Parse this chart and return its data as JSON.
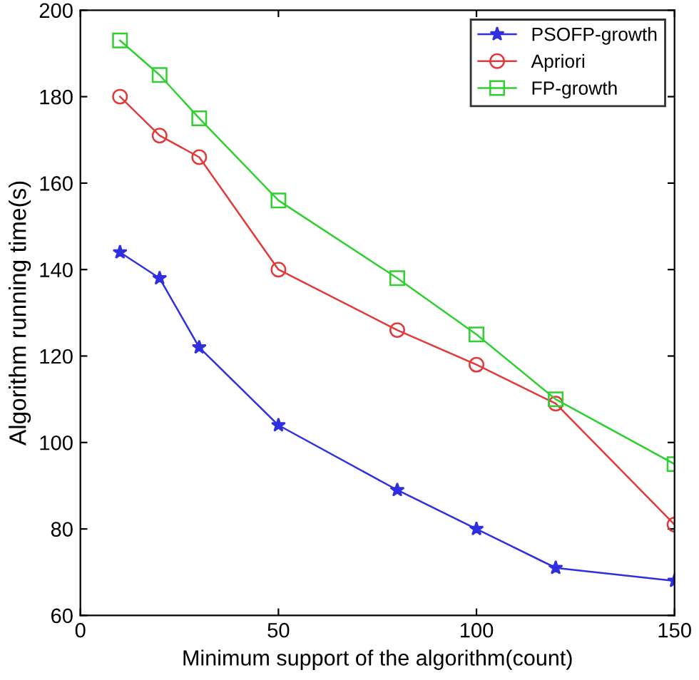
{
  "chart_data": {
    "type": "line",
    "xlabel": "Minimum support of the algorithm(count)",
    "ylabel": "Algorithm running time(s)",
    "x": [
      10,
      20,
      30,
      50,
      80,
      100,
      120,
      150
    ],
    "series": [
      {
        "name": "PSOFP-growth",
        "color": "#2f2fe0",
        "marker": "star",
        "values": [
          144,
          138,
          122,
          104,
          89,
          80,
          71,
          68
        ]
      },
      {
        "name": "Apriori",
        "color": "#e03a3a",
        "marker": "circle",
        "values": [
          180,
          171,
          166,
          140,
          126,
          118,
          109,
          81
        ]
      },
      {
        "name": "FP-growth",
        "color": "#30d030",
        "marker": "square",
        "values": [
          193,
          185,
          175,
          156,
          138,
          125,
          110,
          95
        ]
      }
    ],
    "xlim": [
      0,
      150
    ],
    "ylim": [
      60,
      200
    ],
    "xticks": [
      0,
      50,
      100,
      150
    ],
    "yticks": [
      60,
      80,
      100,
      120,
      140,
      160,
      180,
      200
    ],
    "grid": false,
    "legend": "top right",
    "line_style": "solid"
  }
}
